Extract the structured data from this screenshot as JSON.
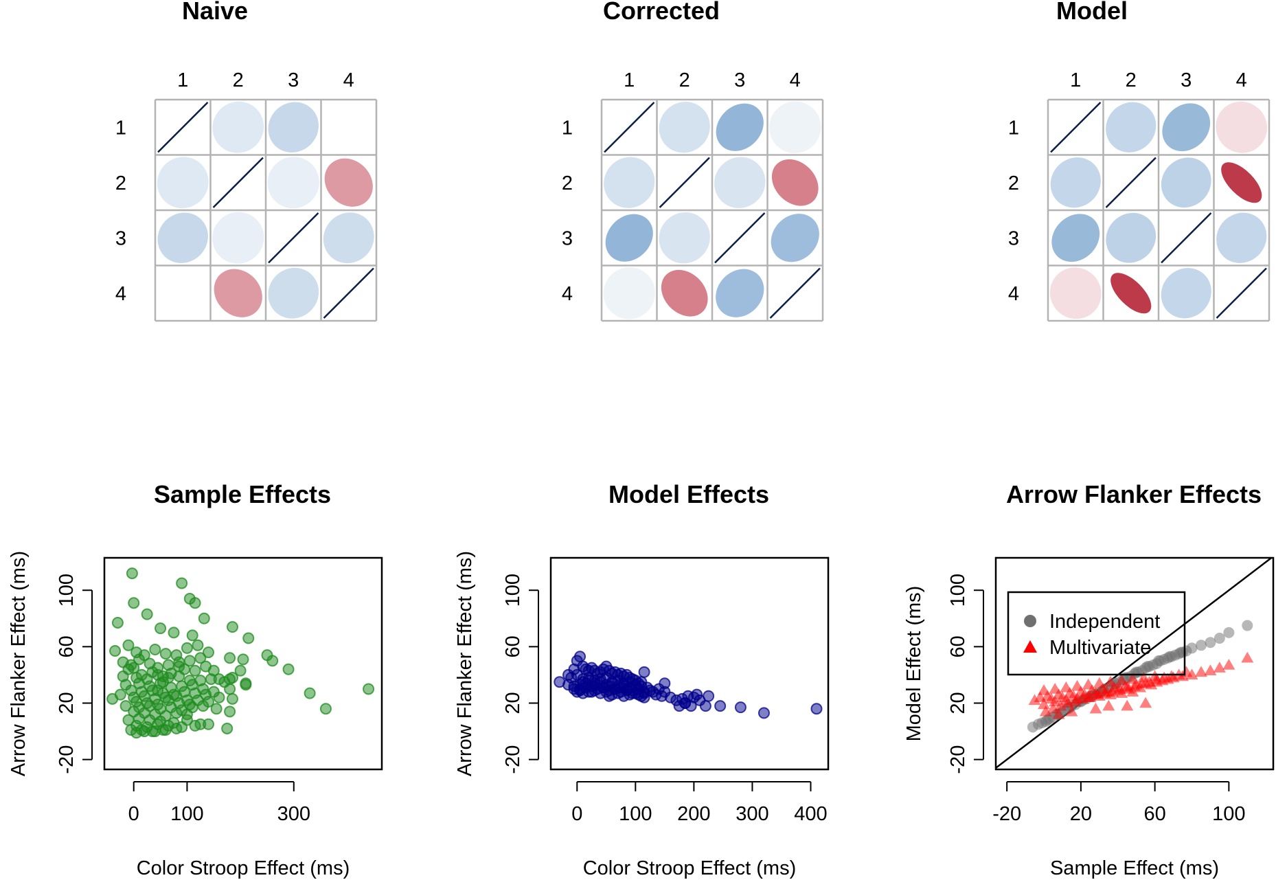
{
  "chart_data": [
    {
      "type": "heatmap",
      "title": "Naive",
      "row_labels": [
        "1",
        "2",
        "3",
        "4"
      ],
      "col_labels": [
        "1",
        "2",
        "3",
        "4"
      ],
      "values": [
        [
          1.0,
          -0.05,
          -0.12,
          0.0
        ],
        [
          -0.05,
          1.0,
          -0.03,
          0.28
        ],
        [
          -0.12,
          -0.03,
          1.0,
          -0.1
        ],
        [
          0.0,
          0.28,
          -0.1,
          1.0
        ]
      ],
      "colors": {
        "negative": "#2166ac",
        "positive": "#b2182b",
        "diagonal_line": "#0b1e4a",
        "grid": "#b3b3b3"
      }
    },
    {
      "type": "heatmap",
      "title": "Corrected",
      "row_labels": [
        "1",
        "2",
        "3",
        "4"
      ],
      "col_labels": [
        "1",
        "2",
        "3",
        "4"
      ],
      "values": [
        [
          1.0,
          -0.08,
          -0.33,
          -0.02
        ],
        [
          -0.08,
          1.0,
          -0.07,
          0.4
        ],
        [
          -0.33,
          -0.07,
          1.0,
          -0.28
        ],
        [
          -0.02,
          0.4,
          -0.28,
          1.0
        ]
      ],
      "colors": {
        "negative": "#2166ac",
        "positive": "#b2182b",
        "diagonal_line": "#0b1e4a",
        "grid": "#b3b3b3"
      }
    },
    {
      "type": "heatmap",
      "title": "Model",
      "row_labels": [
        "1",
        "2",
        "3",
        "4"
      ],
      "col_labels": [
        "1",
        "2",
        "3",
        "4"
      ],
      "values": [
        [
          1.0,
          -0.13,
          -0.3,
          0.05
        ],
        [
          -0.13,
          1.0,
          -0.15,
          0.78
        ],
        [
          -0.3,
          -0.15,
          1.0,
          -0.13
        ],
        [
          0.05,
          0.78,
          -0.13,
          1.0
        ]
      ],
      "colors": {
        "negative": "#2166ac",
        "positive": "#b2182b",
        "diagonal_line": "#0b1e4a",
        "grid": "#b3b3b3"
      }
    },
    {
      "type": "scatter",
      "title": "Sample Effects",
      "xlabel": "Color Stroop Effect (ms)",
      "ylabel": "Arrow Flanker Effect (ms)",
      "xlim": [
        -55,
        465
      ],
      "ylim": [
        -27,
        123
      ],
      "xticks": [
        0,
        100,
        300
      ],
      "xtick_labels": [
        "0",
        "100",
        "300"
      ],
      "yticks": [
        -20,
        20,
        60,
        100
      ],
      "ytick_labels": [
        "-20",
        "20",
        "60",
        "100"
      ],
      "color": "#1e8c1e",
      "x": [
        -3,
        90,
        105,
        115,
        132,
        185,
        215,
        260,
        290,
        330,
        360,
        440,
        -30,
        0,
        25,
        50,
        75,
        110,
        180,
        200,
        210,
        250,
        150,
        170,
        185,
        -35,
        -10,
        5,
        20,
        40,
        60,
        80,
        100,
        120,
        -20,
        -5,
        10,
        30,
        45,
        65,
        85,
        105,
        125,
        140,
        -10,
        0,
        15,
        35,
        55,
        70,
        95,
        115,
        135,
        -20,
        5,
        25,
        45,
        65,
        85,
        105,
        125,
        145,
        160,
        -15,
        10,
        30,
        50,
        70,
        90,
        110,
        130,
        150,
        180,
        -5,
        15,
        35,
        55,
        75,
        95,
        115,
        135,
        0,
        20,
        40,
        60,
        80,
        100,
        120,
        140,
        160,
        5,
        25,
        45,
        65,
        85,
        105,
        -15,
        10,
        30,
        50,
        70,
        90,
        110,
        130,
        155,
        180,
        0,
        20,
        40,
        60,
        80,
        100,
        -10,
        10,
        30,
        50,
        75,
        100,
        125,
        5,
        25,
        45,
        65,
        90,
        115,
        140,
        175,
        -5,
        15,
        35,
        55,
        80,
        20,
        40,
        60,
        5,
        45,
        55,
        85,
        180,
        -40,
        185,
        205,
        210,
        -25
      ],
      "y": [
        112,
        105,
        94,
        91,
        80,
        74,
        66,
        50,
        44,
        27,
        16,
        30,
        77,
        91,
        83,
        73,
        70,
        68,
        52,
        43,
        33,
        54,
        43,
        35,
        38,
        57,
        61,
        56,
        54,
        58,
        55,
        54,
        59,
        61,
        49,
        47,
        51,
        48,
        45,
        47,
        49,
        50,
        52,
        56,
        44,
        45,
        40,
        42,
        39,
        41,
        44,
        43,
        46,
        39,
        38,
        37,
        40,
        38,
        39,
        36,
        36,
        37,
        37,
        33,
        34,
        32,
        34,
        31,
        32,
        33,
        30,
        28,
        30,
        29,
        28,
        29,
        27,
        26,
        28,
        27,
        26,
        24,
        25,
        23,
        24,
        25,
        22,
        22,
        21,
        24,
        21,
        20,
        19,
        22,
        20,
        19,
        18,
        17,
        18,
        16,
        17,
        15,
        17,
        18,
        16,
        14,
        14,
        13,
        12,
        11,
        13,
        12,
        8,
        9,
        8,
        7,
        6,
        8,
        5,
        4,
        3,
        5,
        4,
        3,
        4,
        5,
        2,
        1,
        1,
        0,
        1,
        2,
        0,
        0,
        1,
        -1,
        29,
        35,
        46,
        37,
        23,
        23,
        51,
        34,
        26
      ],
      "marker": "circle"
    },
    {
      "type": "scatter",
      "title": "Model Effects",
      "xlabel": "Color Stroop Effect (ms)",
      "ylabel": "Arrow Flanker Effect (ms)",
      "xlim": [
        -45,
        430
      ],
      "ylim": [
        -27,
        123
      ],
      "xticks": [
        0,
        100,
        200,
        300,
        400
      ],
      "xtick_labels": [
        "0",
        "100",
        "200",
        "300",
        "400"
      ],
      "yticks": [
        -20,
        20,
        60,
        100
      ],
      "ytick_labels": [
        "-20",
        "20",
        "60",
        "100"
      ],
      "color": "#00008b",
      "x": [
        -30,
        -15,
        -5,
        0,
        5,
        10,
        15,
        20,
        25,
        30,
        35,
        40,
        45,
        50,
        55,
        60,
        65,
        70,
        75,
        80,
        85,
        90,
        95,
        100,
        105,
        110,
        -10,
        0,
        10,
        20,
        30,
        40,
        50,
        60,
        70,
        80,
        90,
        100,
        110,
        120,
        -5,
        5,
        15,
        25,
        35,
        45,
        55,
        65,
        75,
        85,
        95,
        105,
        115,
        125,
        0,
        10,
        20,
        30,
        40,
        50,
        60,
        70,
        80,
        90,
        100,
        110,
        130,
        135,
        140,
        145,
        150,
        160,
        170,
        175,
        180,
        185,
        190,
        200,
        205,
        210,
        220,
        225,
        245,
        280,
        320,
        410,
        5,
        15,
        25,
        35,
        45,
        55,
        65,
        75,
        85,
        95,
        105,
        115,
        10,
        20,
        30,
        40,
        50,
        60,
        70,
        80,
        90,
        -15,
        -5,
        5,
        25,
        55,
        115,
        115,
        150,
        185,
        195
      ],
      "y": [
        35,
        40,
        44,
        50,
        53,
        46,
        44,
        43,
        45,
        43,
        41,
        42,
        44,
        46,
        43,
        41,
        42,
        40,
        41,
        39,
        40,
        38,
        37,
        36,
        34,
        35,
        38,
        40,
        37,
        38,
        36,
        37,
        38,
        35,
        36,
        34,
        35,
        33,
        32,
        31,
        32,
        33,
        34,
        32,
        33,
        31,
        32,
        30,
        31,
        30,
        29,
        30,
        28,
        29,
        28,
        27,
        28,
        29,
        27,
        28,
        26,
        27,
        25,
        26,
        27,
        25,
        28,
        26,
        30,
        25,
        34,
        24,
        22,
        18,
        23,
        20,
        25,
        24,
        26,
        22,
        18,
        25,
        18,
        17,
        13,
        16,
        30,
        31,
        32,
        30,
        31,
        29,
        30,
        28,
        29,
        27,
        26,
        24,
        35,
        36,
        34,
        35,
        33,
        34,
        32,
        33,
        31,
        33,
        30,
        29,
        28,
        25,
        27,
        42,
        28,
        20,
        18
      ],
      "marker": "circle"
    },
    {
      "type": "scatter",
      "title": "Arrow Flanker Effects",
      "xlabel": "Sample Effect (ms)",
      "ylabel": "Model Effect (ms)",
      "xlim": [
        -26,
        124
      ],
      "ylim": [
        -27,
        123
      ],
      "xticks": [
        -20,
        20,
        60,
        100
      ],
      "xtick_labels": [
        "-20",
        "20",
        "60",
        "100"
      ],
      "yticks": [
        -20,
        20,
        60,
        100
      ],
      "ytick_labels": [
        "-20",
        "20",
        "60",
        "100"
      ],
      "reference_line": "identity",
      "legend": {
        "position": "top-left",
        "entries": [
          "Independent",
          "Multivariate"
        ]
      },
      "series": [
        {
          "name": "Independent",
          "color": "#707070",
          "marker": "circle",
          "x": [
            -6,
            -3,
            -1,
            1,
            3,
            5,
            7,
            9,
            11,
            13,
            15,
            17,
            19,
            21,
            23,
            25,
            27,
            29,
            31,
            33,
            35,
            37,
            39,
            41,
            43,
            45,
            47,
            49,
            51,
            53,
            55,
            57,
            59,
            61,
            63,
            65,
            67,
            69,
            71,
            73,
            75,
            77,
            80,
            85,
            90,
            95,
            100,
            110,
            2,
            8,
            14,
            20,
            26,
            32,
            38,
            44,
            50,
            56,
            62,
            68,
            74
          ],
          "y": [
            3,
            5,
            6,
            7,
            9,
            10,
            12,
            13,
            15,
            16,
            18,
            19,
            21,
            22,
            23,
            25,
            26,
            27,
            28,
            30,
            31,
            33,
            34,
            35,
            37,
            38,
            39,
            41,
            42,
            43,
            45,
            46,
            47,
            48,
            50,
            51,
            52,
            53,
            54,
            55,
            56,
            57,
            59,
            61,
            63,
            66,
            70,
            75,
            8,
            12,
            17,
            21,
            25,
            29,
            34,
            38,
            42,
            46,
            50,
            53,
            56
          ]
        },
        {
          "name": "Multivariate",
          "color": "#ff0000",
          "marker": "triangle",
          "x": [
            -5,
            -2,
            0,
            2,
            4,
            6,
            8,
            10,
            12,
            14,
            16,
            18,
            20,
            22,
            24,
            26,
            28,
            30,
            32,
            34,
            36,
            38,
            40,
            42,
            44,
            46,
            48,
            50,
            52,
            55,
            58,
            61,
            64,
            67,
            70,
            75,
            80,
            85,
            90,
            95,
            100,
            110,
            1,
            5,
            9,
            13,
            17,
            21,
            25,
            29,
            33,
            37,
            41,
            45,
            49,
            53,
            57,
            61,
            65,
            69,
            73,
            77,
            0,
            6,
            12,
            18,
            24,
            30,
            36,
            42,
            48,
            54,
            60,
            8,
            15,
            28,
            35,
            45,
            55
          ],
          "y": [
            22,
            24,
            19,
            25,
            23,
            21,
            26,
            24,
            22,
            27,
            25,
            23,
            28,
            26,
            24,
            29,
            27,
            25,
            30,
            28,
            26,
            31,
            29,
            27,
            32,
            30,
            28,
            33,
            31,
            34,
            33,
            35,
            36,
            37,
            38,
            39,
            40,
            42,
            43,
            45,
            47,
            52,
            14,
            16,
            18,
            20,
            21,
            23,
            24,
            26,
            27,
            28,
            30,
            31,
            32,
            34,
            35,
            37,
            38,
            39,
            40,
            42,
            29,
            30,
            31,
            32,
            33,
            34,
            35,
            36,
            37,
            38,
            39,
            12,
            14,
            16,
            18,
            18,
            20
          ]
        }
      ]
    }
  ]
}
